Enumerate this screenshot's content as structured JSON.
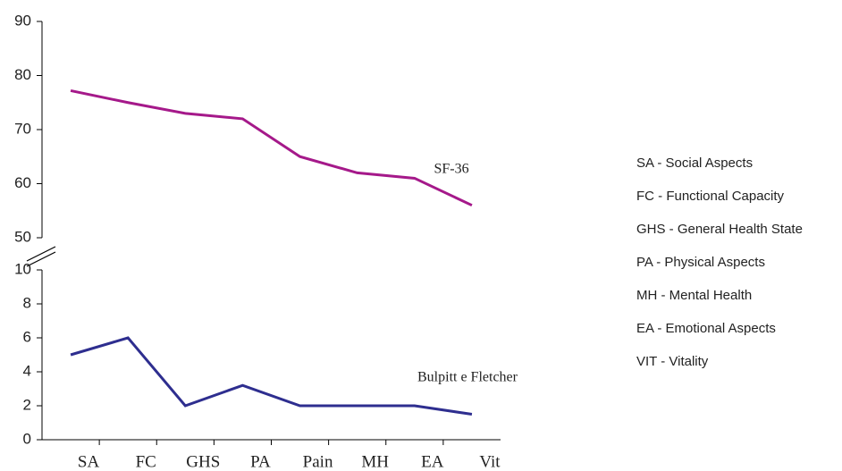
{
  "chart_data": [
    {
      "type": "line",
      "ylim": [
        50,
        90
      ],
      "yticks": [
        50,
        60,
        70,
        80,
        90
      ],
      "series": [
        {
          "name": "SF-36",
          "color": "#a5198a",
          "values": [
            77.2,
            75,
            73,
            72,
            65,
            62,
            61,
            56
          ]
        }
      ]
    },
    {
      "type": "line",
      "ylim": [
        0,
        10
      ],
      "yticks": [
        0,
        2,
        4,
        6,
        8,
        10
      ],
      "categories": [
        "SA",
        "FC",
        "GHS",
        "PA",
        "Pain",
        "MH",
        "EA",
        "Vit"
      ],
      "series": [
        {
          "name": "Bulpitt e Fletcher",
          "color": "#2e2e8f",
          "values": [
            5,
            6,
            2,
            3.2,
            2,
            2,
            2,
            1.5
          ]
        }
      ]
    }
  ],
  "notes": [
    "SA - Social Aspects",
    "FC - Functional Capacity",
    "GHS - General Health State",
    "PA - Physical Aspects",
    "MH - Mental Health",
    "EA - Emotional Aspects",
    "VIT - Vitality"
  ]
}
